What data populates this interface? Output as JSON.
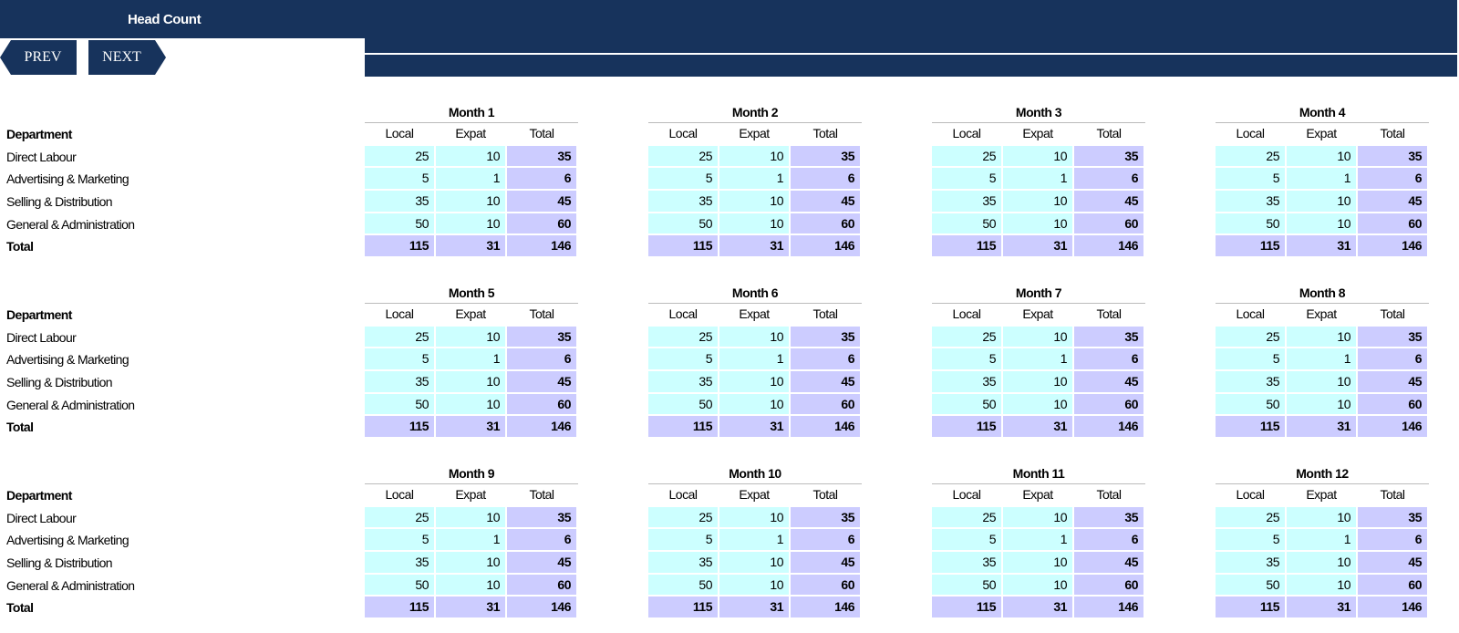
{
  "header": {
    "title": "Head Count"
  },
  "nav": {
    "prev_label": "PREV",
    "next_label": "NEXT"
  },
  "labels": {
    "department": "Department",
    "rows": [
      "Direct Labour",
      "Advertising & Marketing",
      "Selling & Distribution",
      "General & Administration"
    ],
    "total": "Total",
    "columns": [
      "Local",
      "Expat",
      "Total"
    ]
  },
  "colors": {
    "header": "#17335c",
    "local_expat_cell": "#ccffff",
    "total_cell": "#ccccff"
  },
  "months": [
    {
      "title": "Month 1",
      "rows": [
        [
          25,
          10,
          35
        ],
        [
          5,
          1,
          6
        ],
        [
          35,
          10,
          45
        ],
        [
          50,
          10,
          60
        ]
      ],
      "total": [
        115,
        31,
        146
      ]
    },
    {
      "title": "Month 2",
      "rows": [
        [
          25,
          10,
          35
        ],
        [
          5,
          1,
          6
        ],
        [
          35,
          10,
          45
        ],
        [
          50,
          10,
          60
        ]
      ],
      "total": [
        115,
        31,
        146
      ]
    },
    {
      "title": "Month 3",
      "rows": [
        [
          25,
          10,
          35
        ],
        [
          5,
          1,
          6
        ],
        [
          35,
          10,
          45
        ],
        [
          50,
          10,
          60
        ]
      ],
      "total": [
        115,
        31,
        146
      ]
    },
    {
      "title": "Month 4",
      "rows": [
        [
          25,
          10,
          35
        ],
        [
          5,
          1,
          6
        ],
        [
          35,
          10,
          45
        ],
        [
          50,
          10,
          60
        ]
      ],
      "total": [
        115,
        31,
        146
      ]
    },
    {
      "title": "Month 5",
      "rows": [
        [
          25,
          10,
          35
        ],
        [
          5,
          1,
          6
        ],
        [
          35,
          10,
          45
        ],
        [
          50,
          10,
          60
        ]
      ],
      "total": [
        115,
        31,
        146
      ]
    },
    {
      "title": "Month 6",
      "rows": [
        [
          25,
          10,
          35
        ],
        [
          5,
          1,
          6
        ],
        [
          35,
          10,
          45
        ],
        [
          50,
          10,
          60
        ]
      ],
      "total": [
        115,
        31,
        146
      ]
    },
    {
      "title": "Month 7",
      "rows": [
        [
          25,
          10,
          35
        ],
        [
          5,
          1,
          6
        ],
        [
          35,
          10,
          45
        ],
        [
          50,
          10,
          60
        ]
      ],
      "total": [
        115,
        31,
        146
      ]
    },
    {
      "title": "Month 8",
      "rows": [
        [
          25,
          10,
          35
        ],
        [
          5,
          1,
          6
        ],
        [
          35,
          10,
          45
        ],
        [
          50,
          10,
          60
        ]
      ],
      "total": [
        115,
        31,
        146
      ]
    },
    {
      "title": "Month 9",
      "rows": [
        [
          25,
          10,
          35
        ],
        [
          5,
          1,
          6
        ],
        [
          35,
          10,
          45
        ],
        [
          50,
          10,
          60
        ]
      ],
      "total": [
        115,
        31,
        146
      ]
    },
    {
      "title": "Month 10",
      "rows": [
        [
          25,
          10,
          35
        ],
        [
          5,
          1,
          6
        ],
        [
          35,
          10,
          45
        ],
        [
          50,
          10,
          60
        ]
      ],
      "total": [
        115,
        31,
        146
      ]
    },
    {
      "title": "Month 11",
      "rows": [
        [
          25,
          10,
          35
        ],
        [
          5,
          1,
          6
        ],
        [
          35,
          10,
          45
        ],
        [
          50,
          10,
          60
        ]
      ],
      "total": [
        115,
        31,
        146
      ]
    },
    {
      "title": "Month 12",
      "rows": [
        [
          25,
          10,
          35
        ],
        [
          5,
          1,
          6
        ],
        [
          35,
          10,
          45
        ],
        [
          50,
          10,
          60
        ]
      ],
      "total": [
        115,
        31,
        146
      ]
    }
  ]
}
